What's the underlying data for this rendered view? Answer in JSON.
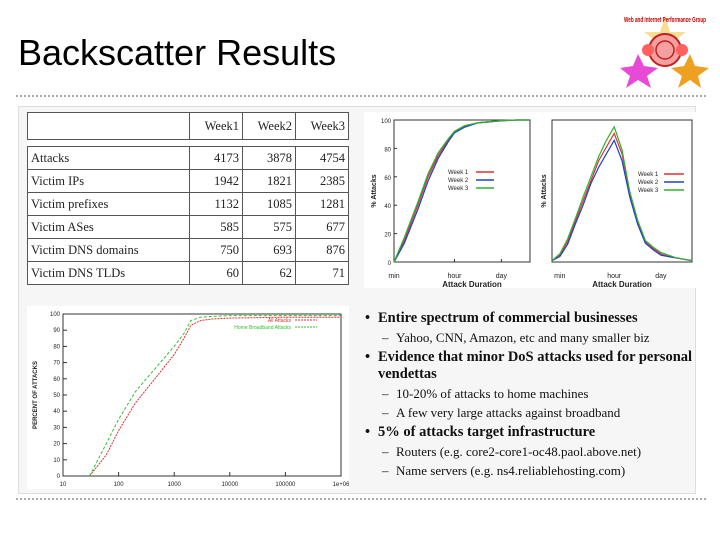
{
  "title": "Backscatter Results",
  "logo": {
    "text": "Web and Internet Performance Group"
  },
  "table": {
    "headers": [
      "Week1",
      "Week2",
      "Week3"
    ],
    "rows": [
      {
        "label": "Attacks",
        "values": [
          "4173",
          "3878",
          "4754"
        ]
      },
      {
        "label": "Victim IPs",
        "values": [
          "1942",
          "1821",
          "2385"
        ]
      },
      {
        "label": "Victim prefixes",
        "values": [
          "1132",
          "1085",
          "1281"
        ]
      },
      {
        "label": "Victim ASes",
        "values": [
          "585",
          "575",
          "677"
        ]
      },
      {
        "label": "Victim DNS domains",
        "values": [
          "750",
          "693",
          "876"
        ]
      },
      {
        "label": "Victim DNS TLDs",
        "values": [
          "60",
          "62",
          "71"
        ]
      }
    ]
  },
  "chart_data": [
    {
      "type": "line",
      "title": "",
      "xlabel": "Attack Duration",
      "ylabel": "% Attacks",
      "xticks": [
        "min",
        "hour",
        "day"
      ],
      "ylim": [
        0,
        100
      ],
      "legend": "center-right",
      "series": [
        {
          "name": "Week 1",
          "color": "#e03030",
          "x": [
            1,
            2,
            5,
            10,
            20,
            40,
            60,
            120,
            300,
            1440,
            4000,
            10000
          ],
          "y": [
            0,
            15,
            40,
            60,
            75,
            86,
            92,
            96,
            98,
            99.5,
            100,
            100
          ]
        },
        {
          "name": "Week 2",
          "color": "#2040d0",
          "x": [
            1,
            2,
            5,
            10,
            20,
            40,
            60,
            120,
            300,
            1440,
            4000,
            10000
          ],
          "y": [
            0,
            13,
            37,
            57,
            73,
            85,
            91,
            95,
            98,
            99.5,
            100,
            100
          ]
        },
        {
          "name": "Week 3",
          "color": "#30b030",
          "x": [
            1,
            2,
            5,
            10,
            20,
            40,
            60,
            120,
            300,
            1440,
            4000,
            10000
          ],
          "y": [
            0,
            17,
            42,
            62,
            77,
            87,
            92,
            96,
            98,
            99.5,
            100,
            100
          ]
        }
      ]
    },
    {
      "type": "line",
      "title": "",
      "xlabel": "Attack Duration",
      "ylabel": "% Attacks",
      "xticks": [
        "min",
        "hour",
        "day"
      ],
      "legend": "top-right",
      "series": [
        {
          "name": "Week 1",
          "color": "#e03030",
          "x": [
            0,
            1,
            2,
            3,
            4,
            5,
            6,
            7,
            8,
            9,
            10,
            11,
            12,
            13,
            14,
            15,
            16,
            17,
            18
          ],
          "y": [
            0.1,
            0.5,
            1.5,
            3,
            4.5,
            6,
            7.5,
            8.5,
            9.5,
            8,
            5,
            3,
            1.5,
            1,
            0.6,
            0.4,
            0.3,
            0.2,
            0.1
          ]
        },
        {
          "name": "Week 2",
          "color": "#2040d0",
          "x": [
            0,
            1,
            2,
            3,
            4,
            5,
            6,
            7,
            8,
            9,
            10,
            11,
            12,
            13,
            14,
            15,
            16,
            17,
            18
          ],
          "y": [
            0.1,
            0.4,
            1.3,
            2.8,
            4.2,
            5.8,
            7,
            8,
            9,
            7.5,
            4.8,
            2.8,
            1.4,
            0.9,
            0.5,
            0.4,
            0.3,
            0.2,
            0.1
          ]
        },
        {
          "name": "Week 3",
          "color": "#30b030",
          "x": [
            0,
            1,
            2,
            3,
            4,
            5,
            6,
            7,
            8,
            9,
            10,
            11,
            12,
            13,
            14,
            15,
            16,
            17,
            18
          ],
          "y": [
            0.1,
            0.6,
            1.7,
            3.2,
            4.8,
            6.3,
            7.8,
            9,
            10,
            8.3,
            5.2,
            3.1,
            1.6,
            1.1,
            0.7,
            0.5,
            0.3,
            0.2,
            0.1
          ]
        }
      ]
    },
    {
      "type": "line",
      "title": "",
      "xlabel": "",
      "ylabel": "PERCENT OF ATTACKS",
      "xscale": "log",
      "xticks": [
        "10",
        "100",
        "1000",
        "10000",
        "100000",
        "1e+06"
      ],
      "yticks": [
        "0",
        "10",
        "20",
        "30",
        "40",
        "50",
        "60",
        "70",
        "80",
        "90",
        "100"
      ],
      "ylim": [
        0,
        100
      ],
      "legend": "top-right",
      "series": [
        {
          "name": "All Attacks",
          "color": "#e03030",
          "x": [
            30,
            60,
            100,
            200,
            500,
            1000,
            1500,
            2000,
            3000,
            5000,
            10000,
            100000,
            1000000
          ],
          "y": [
            0,
            13,
            28,
            45,
            62,
            75,
            85,
            93,
            96,
            97,
            97.5,
            98,
            98
          ]
        },
        {
          "name": "Home Broadband Attacks",
          "color": "#30c030",
          "x": [
            30,
            60,
            100,
            200,
            500,
            1000,
            1500,
            2000,
            3000,
            5000,
            10000,
            100000,
            1000000
          ],
          "y": [
            0,
            20,
            35,
            52,
            68,
            80,
            88,
            96,
            98,
            98.5,
            99,
            99,
            99
          ]
        }
      ]
    }
  ],
  "bullets": [
    {
      "text": "Entire spectrum of commercial businesses",
      "subs": [
        "Yahoo, CNN, Amazon, etc and many smaller biz"
      ]
    },
    {
      "text": "Evidence that minor DoS attacks used for personal vendettas",
      "subs": [
        "10-20% of attacks to home machines",
        "A few very large attacks against broadband"
      ]
    },
    {
      "text": "5% of attacks target infrastructure",
      "subs": [
        "Routers (e.g. core2-core1-oc48.paol.above.net)",
        "Name servers (e.g. ns4.reliablehosting.com)"
      ]
    }
  ]
}
